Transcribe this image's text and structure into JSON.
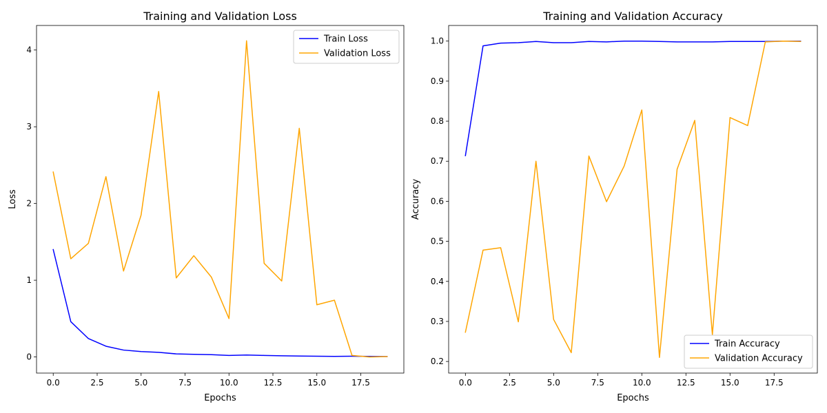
{
  "chart_data": [
    {
      "type": "line",
      "title": "Training and Validation Loss",
      "xlabel": "Epochs",
      "ylabel": "Loss",
      "xlim": [
        -0.95,
        19.95
      ],
      "ylim": [
        -0.21,
        4.32
      ],
      "xticks": [
        0,
        2.5,
        5,
        7.5,
        10,
        12.5,
        15,
        17.5
      ],
      "xtick_labels": [
        "0.0",
        "2.5",
        "5.0",
        "7.5",
        "10.0",
        "12.5",
        "15.0",
        "17.5"
      ],
      "yticks": [
        0,
        1,
        2,
        3,
        4
      ],
      "ytick_labels": [
        "0",
        "1",
        "2",
        "3",
        "4"
      ],
      "grid": false,
      "legend_position": "top-right",
      "x": [
        0,
        1,
        2,
        3,
        4,
        5,
        6,
        7,
        8,
        9,
        10,
        11,
        12,
        13,
        14,
        15,
        16,
        17,
        18,
        19
      ],
      "series": [
        {
          "name": "Train Loss",
          "color": "#0000ff",
          "values": [
            1.4,
            0.46,
            0.24,
            0.14,
            0.09,
            0.07,
            0.06,
            0.04,
            0.035,
            0.03,
            0.02,
            0.025,
            0.02,
            0.015,
            0.012,
            0.01,
            0.008,
            0.01,
            0.008,
            0.005
          ]
        },
        {
          "name": "Validation Loss",
          "color": "#ffa500",
          "values": [
            2.41,
            1.28,
            1.48,
            2.35,
            1.12,
            1.85,
            3.46,
            1.03,
            1.32,
            1.04,
            0.5,
            4.12,
            1.22,
            0.99,
            2.98,
            0.68,
            0.74,
            0.02,
            0.0,
            0.005
          ]
        }
      ]
    },
    {
      "type": "line",
      "title": "Training and Validation Accuracy",
      "xlabel": "Epochs",
      "ylabel": "Accuracy",
      "xlim": [
        -0.95,
        19.95
      ],
      "ylim": [
        0.171,
        1.039
      ],
      "xticks": [
        0,
        2.5,
        5,
        7.5,
        10,
        12.5,
        15,
        17.5
      ],
      "xtick_labels": [
        "0.0",
        "2.5",
        "5.0",
        "7.5",
        "10.0",
        "12.5",
        "15.0",
        "17.5"
      ],
      "yticks": [
        0.2,
        0.3,
        0.4,
        0.5,
        0.6,
        0.7,
        0.8,
        0.9,
        1.0
      ],
      "ytick_labels": [
        "0.2",
        "0.3",
        "0.4",
        "0.5",
        "0.6",
        "0.7",
        "0.8",
        "0.9",
        "1.0"
      ],
      "grid": false,
      "legend_position": "bottom-right",
      "x": [
        0,
        1,
        2,
        3,
        4,
        5,
        6,
        7,
        8,
        9,
        10,
        11,
        12,
        13,
        14,
        15,
        16,
        17,
        18,
        19
      ],
      "series": [
        {
          "name": "Train Accuracy",
          "color": "#0000ff",
          "values": [
            0.714,
            0.988,
            0.995,
            0.996,
            0.999,
            0.996,
            0.996,
            0.999,
            0.998,
            1.0,
            1.0,
            0.999,
            0.998,
            0.998,
            0.998,
            0.999,
            0.999,
            0.999,
            1.0,
            1.0
          ]
        },
        {
          "name": "Validation Accuracy",
          "color": "#ffa500",
          "values": [
            0.273,
            0.478,
            0.484,
            0.299,
            0.7,
            0.305,
            0.222,
            0.713,
            0.599,
            0.688,
            0.828,
            0.21,
            0.68,
            0.802,
            0.267,
            0.809,
            0.789,
            0.998,
            1.0,
            0.999
          ]
        }
      ]
    }
  ]
}
